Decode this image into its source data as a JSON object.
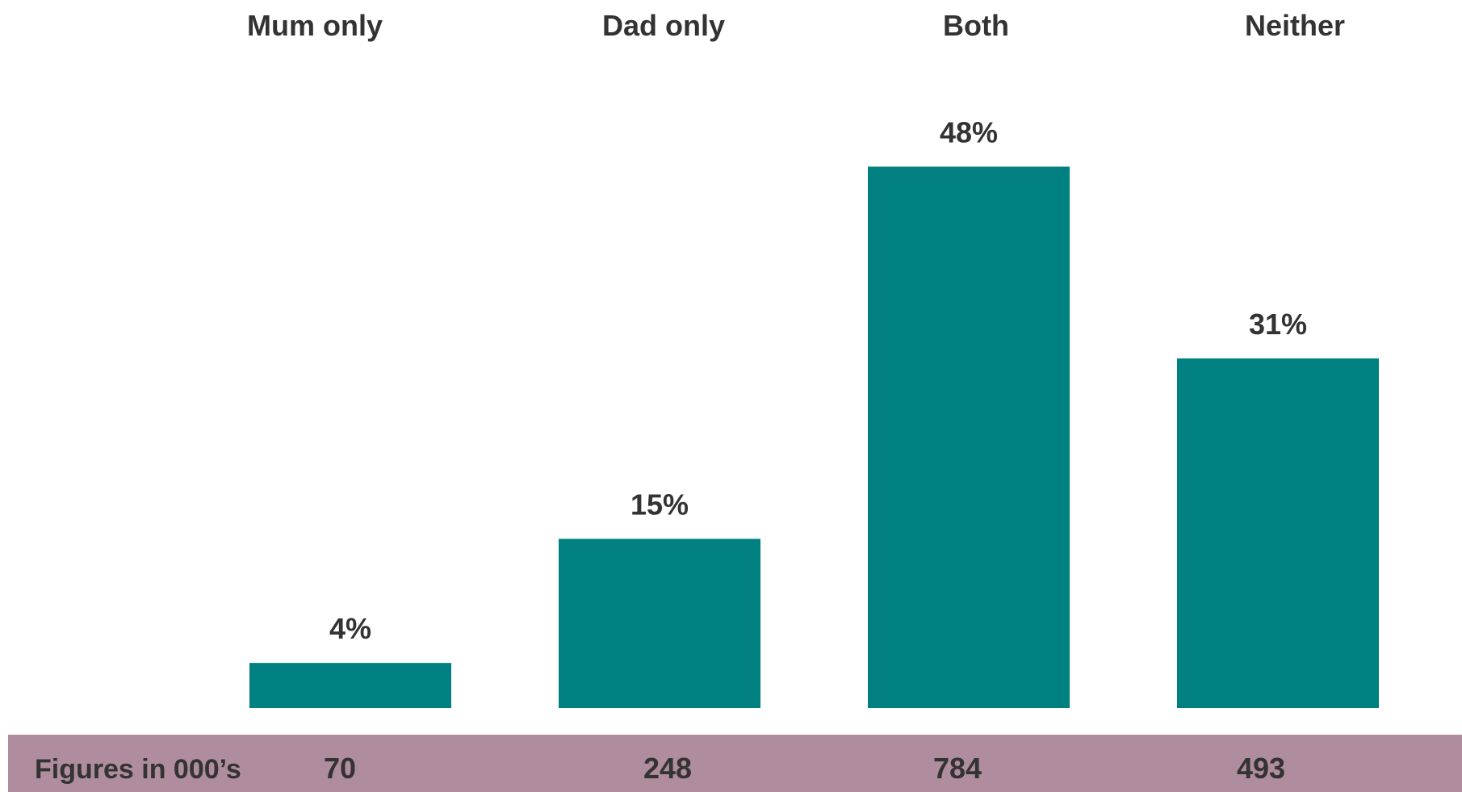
{
  "colors": {
    "bar": "#008080",
    "figures_band": "#AF8C9E",
    "text": "#333333"
  },
  "chart_data": {
    "type": "bar",
    "categories": [
      "Mum only",
      "Dad only",
      "Both",
      "Neither"
    ],
    "values": [
      4,
      15,
      48,
      31
    ],
    "value_labels": [
      "4%",
      "15%",
      "48%",
      "31%"
    ],
    "unit": "%",
    "ylim": [
      0,
      50
    ],
    "grid": false,
    "title": "",
    "xlabel": "",
    "ylabel": "",
    "figures_row": {
      "label": "Figures in 000’s",
      "values": [
        "70",
        "248",
        "784",
        "493"
      ]
    }
  }
}
